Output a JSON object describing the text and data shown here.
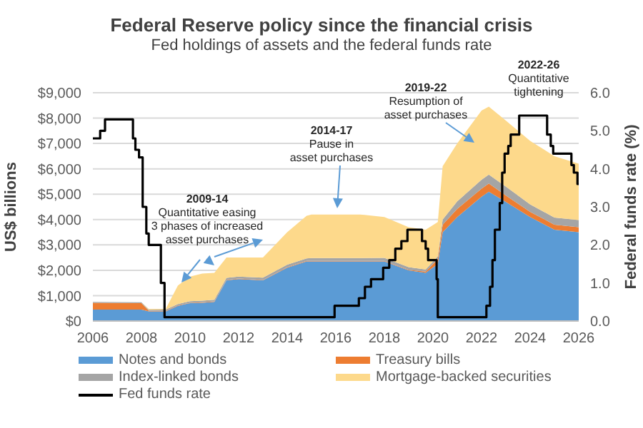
{
  "chart_data": {
    "type": "area",
    "stacked": true,
    "title": "Federal Reserve policy since the financial crisis",
    "subtitle": "Fed holdings of assets and the federal funds rate",
    "ylabel": "US$ billions",
    "y2label": "Federal funds rate (%)",
    "x": [
      2006,
      2008,
      2008.3,
      2009,
      2009.5,
      2010,
      2010.5,
      2011,
      2011.5,
      2012,
      2013,
      2014,
      2014.8,
      2015,
      2017,
      2018,
      2019,
      2019.7,
      2020.2,
      2020.4,
      2021,
      2022,
      2022.3,
      2023,
      2024,
      2025,
      2026
    ],
    "series": [
      {
        "name": "Notes and bonds",
        "color": "#5b9bd5",
        "values": [
          450,
          450,
          380,
          380,
          600,
          700,
          720,
          750,
          1600,
          1650,
          1600,
          2100,
          2350,
          2350,
          2350,
          2350,
          2000,
          1900,
          2250,
          3500,
          4100,
          4900,
          5100,
          4700,
          4100,
          3600,
          3500
        ]
      },
      {
        "name": "Treasury bills",
        "color": "#ed7d31",
        "values": [
          270,
          250,
          20,
          20,
          20,
          20,
          20,
          20,
          20,
          20,
          20,
          20,
          20,
          20,
          20,
          20,
          20,
          50,
          200,
          300,
          320,
          320,
          320,
          250,
          200,
          200,
          200
        ]
      },
      {
        "name": "Index-linked bonds",
        "color": "#a5a5a5",
        "values": [
          30,
          40,
          40,
          50,
          50,
          60,
          60,
          70,
          80,
          80,
          90,
          100,
          100,
          110,
          110,
          120,
          100,
          80,
          100,
          200,
          300,
          350,
          350,
          350,
          300,
          280,
          280
        ]
      },
      {
        "name": "Mortgage-backed securities",
        "color": "#fdd98b",
        "values": [
          0,
          0,
          40,
          30,
          730,
          970,
          1070,
          1060,
          800,
          750,
          790,
          1280,
          1680,
          1720,
          1720,
          1610,
          1580,
          1570,
          1350,
          2100,
          2280,
          2730,
          2680,
          2600,
          2500,
          2420,
          2220
        ]
      },
      {
        "name": "Fed funds rate",
        "type": "step",
        "axis": "y2",
        "color": "#000000",
        "x": [
          2006,
          2006.3,
          2006.5,
          2007.65,
          2007.75,
          2007.9,
          2008.05,
          2008.2,
          2008.3,
          2008.8,
          2008.95,
          2015.95,
          2016.95,
          2017.2,
          2017.45,
          2017.95,
          2018.2,
          2018.45,
          2018.7,
          2018.95,
          2019.55,
          2019.7,
          2019.8,
          2020.15,
          2020.2,
          2022.2,
          2022.35,
          2022.45,
          2022.55,
          2022.75,
          2022.85,
          2022.95,
          2023.1,
          2023.2,
          2023.55,
          2024.7,
          2024.85,
          2024.95,
          2025.7,
          2025.8,
          2025.95,
          2026
        ],
        "values": [
          4.8,
          5.0,
          5.3,
          4.8,
          4.5,
          4.3,
          3.0,
          2.3,
          2.0,
          1.0,
          0.1,
          0.4,
          0.6,
          0.9,
          1.1,
          1.4,
          1.6,
          1.9,
          2.1,
          2.4,
          2.1,
          1.9,
          1.6,
          1.1,
          0.1,
          0.4,
          0.9,
          1.6,
          2.4,
          3.1,
          3.9,
          4.4,
          4.6,
          4.9,
          5.4,
          4.9,
          4.6,
          4.4,
          4.1,
          3.9,
          3.6,
          3.6
        ]
      }
    ],
    "xlim": [
      2006,
      2026
    ],
    "xticks": [
      2006,
      2008,
      2010,
      2012,
      2014,
      2016,
      2018,
      2020,
      2022,
      2024,
      2026
    ],
    "ylim": [
      0,
      9000
    ],
    "yticks": [
      {
        "value": 0,
        "label": "$0"
      },
      {
        "value": 1000,
        "label": "$1,000"
      },
      {
        "value": 2000,
        "label": "$2,000"
      },
      {
        "value": 3000,
        "label": "$3,000"
      },
      {
        "value": 4000,
        "label": "$4,000"
      },
      {
        "value": 5000,
        "label": "$5,000"
      },
      {
        "value": 6000,
        "label": "$6,000"
      },
      {
        "value": 7000,
        "label": "$7,000"
      },
      {
        "value": 8000,
        "label": "$8,000"
      },
      {
        "value": 9000,
        "label": "$9,000"
      }
    ],
    "y2lim": [
      0,
      6
    ],
    "y2ticks": [
      {
        "value": 0,
        "label": "0.0"
      },
      {
        "value": 1,
        "label": "1.0"
      },
      {
        "value": 2,
        "label": "2.0"
      },
      {
        "value": 3,
        "label": "3.0"
      },
      {
        "value": 4,
        "label": "4.0"
      },
      {
        "value": 5,
        "label": "5.0"
      },
      {
        "value": 6,
        "label": "6.0"
      }
    ],
    "grid": "y",
    "legend": "bottom",
    "annotations": [
      "2009-14\nQuantitative easing\n3 phases of increased\nasset purchases",
      "2014-17\nPause in\nasset purchases",
      "2019-22\nResumption of\nasset purchases",
      "2022-26\nQuantitative\ntightening"
    ]
  }
}
